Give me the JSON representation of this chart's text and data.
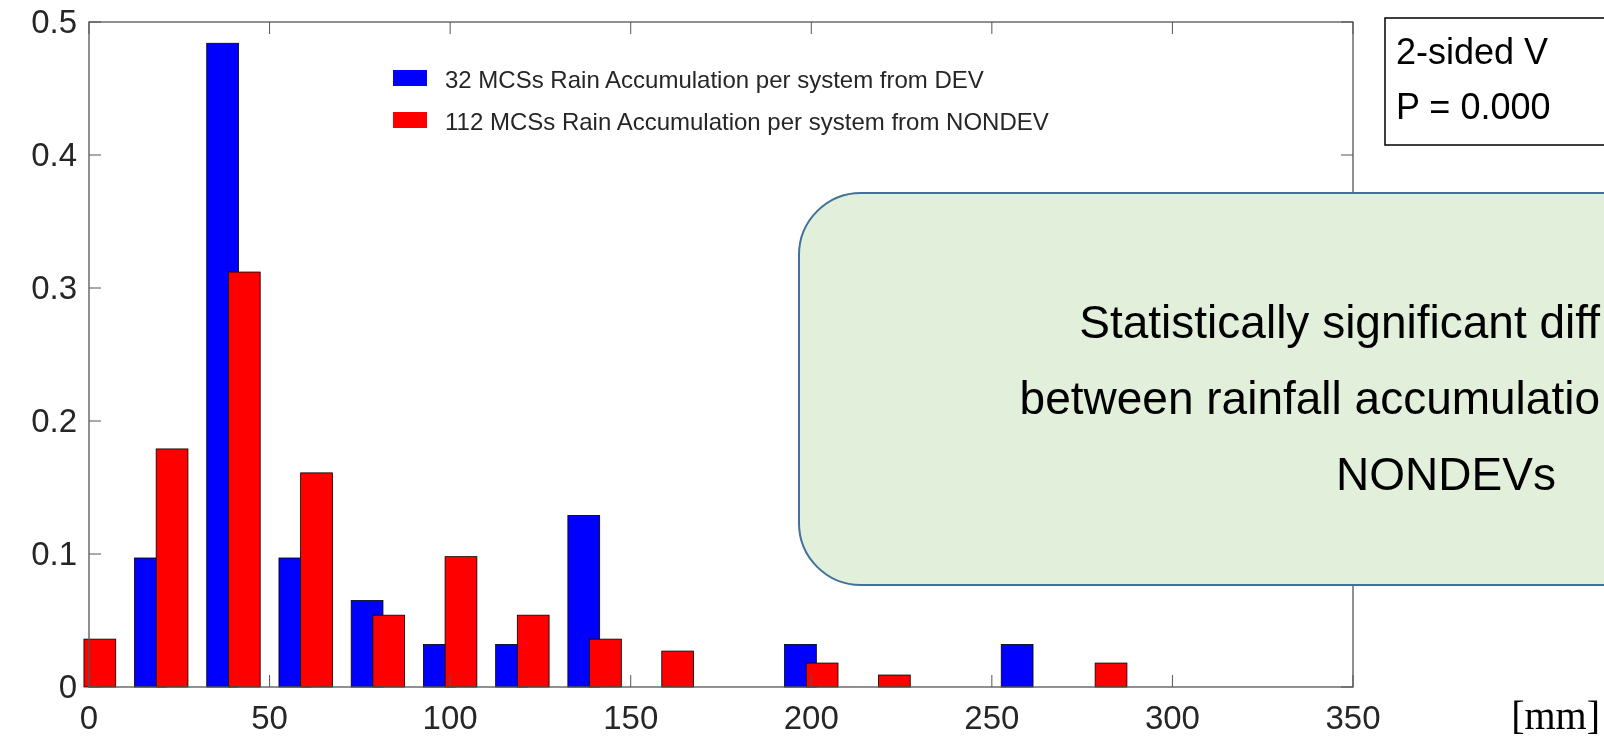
{
  "chart_data": {
    "type": "bar",
    "xlabel": "[mm]",
    "xlim": [
      0,
      350
    ],
    "xticks": [
      0,
      50,
      100,
      150,
      200,
      250,
      300,
      350
    ],
    "ylim": [
      0,
      0.5
    ],
    "yticks": [
      0,
      0.1,
      0.2,
      0.3,
      0.4,
      0.5
    ],
    "series": [
      {
        "name": "32 MCSs Rain Accumulation per system from DEV",
        "color": "#0000ff",
        "x": [
          17,
          37,
          57,
          77,
          97,
          117,
          137,
          197,
          257
        ],
        "values": [
          0.097,
          0.484,
          0.097,
          0.065,
          0.032,
          0.032,
          0.129,
          0.032,
          0.032
        ]
      },
      {
        "name": "112 MCSs Rain Accumulation per system from NONDEV",
        "color": "#ff0000",
        "x": [
          3,
          23,
          43,
          63,
          83,
          103,
          123,
          143,
          163,
          203,
          223,
          283
        ],
        "values": [
          0.036,
          0.179,
          0.312,
          0.161,
          0.054,
          0.098,
          0.054,
          0.036,
          0.027,
          0.018,
          0.009,
          0.018
        ]
      }
    ],
    "legend": "top",
    "annotations": [
      "2-sided V",
      "P = 0.000",
      "Statistically significant diff",
      "between rainfall accumulatio",
      "NONDEVs"
    ]
  }
}
